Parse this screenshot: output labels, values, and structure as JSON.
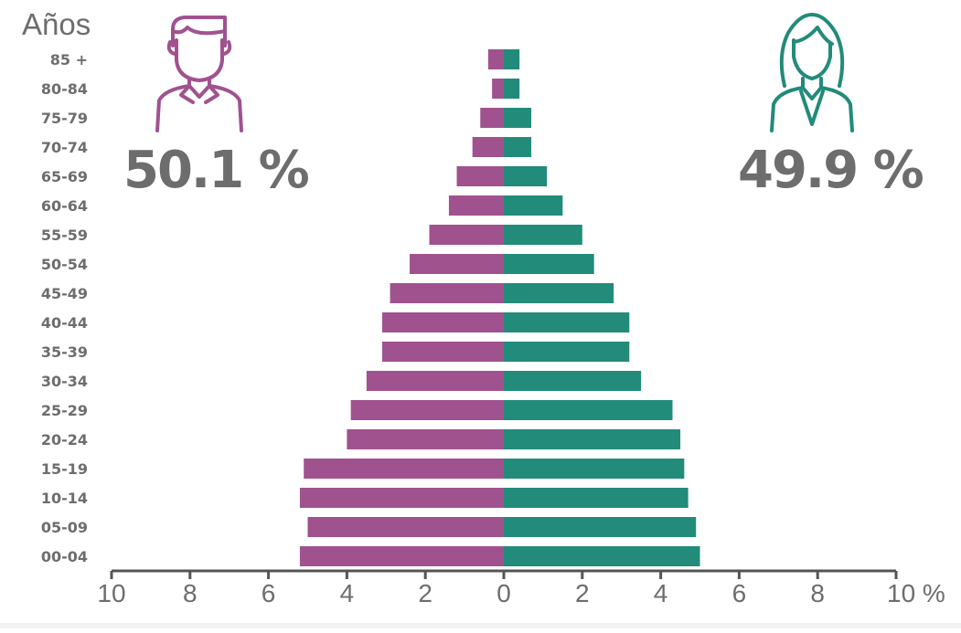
{
  "colors": {
    "male": "#a0528f",
    "female": "#228b7a",
    "text": "#6d6d6d",
    "axis": "#555555"
  },
  "icons": {
    "male": "man-avatar-icon",
    "female": "woman-avatar-icon"
  },
  "summary": {
    "male_pct": "50.1 %",
    "female_pct": "49.9 %"
  },
  "chart_data": {
    "type": "bar",
    "orientation": "horizontal-population-pyramid",
    "y_title": "Años",
    "categories": [
      "85 +",
      "80-84",
      "75-79",
      "70-74",
      "65-69",
      "60-64",
      "55-59",
      "50-54",
      "45-49",
      "40-44",
      "35-39",
      "30-34",
      "25-29",
      "20-24",
      "15-19",
      "10-14",
      "05-09",
      "00-04"
    ],
    "series": [
      {
        "key": "male",
        "values": [
          0.4,
          0.3,
          0.6,
          0.8,
          1.2,
          1.4,
          1.9,
          2.4,
          2.9,
          3.1,
          3.1,
          3.5,
          3.9,
          4.0,
          5.1,
          5.2,
          5.0,
          5.2
        ]
      },
      {
        "key": "female",
        "values": [
          0.4,
          0.4,
          0.7,
          0.7,
          1.1,
          1.5,
          2.0,
          2.3,
          2.8,
          3.2,
          3.2,
          3.5,
          4.3,
          4.5,
          4.6,
          4.7,
          4.9,
          5.0
        ]
      }
    ],
    "x_ticks": [
      "10",
      "8",
      "6",
      "4",
      "2",
      "0",
      "2",
      "4",
      "6",
      "8",
      "10 %"
    ],
    "xlim": [
      -10,
      10
    ],
    "grid": false,
    "legend": "none"
  }
}
